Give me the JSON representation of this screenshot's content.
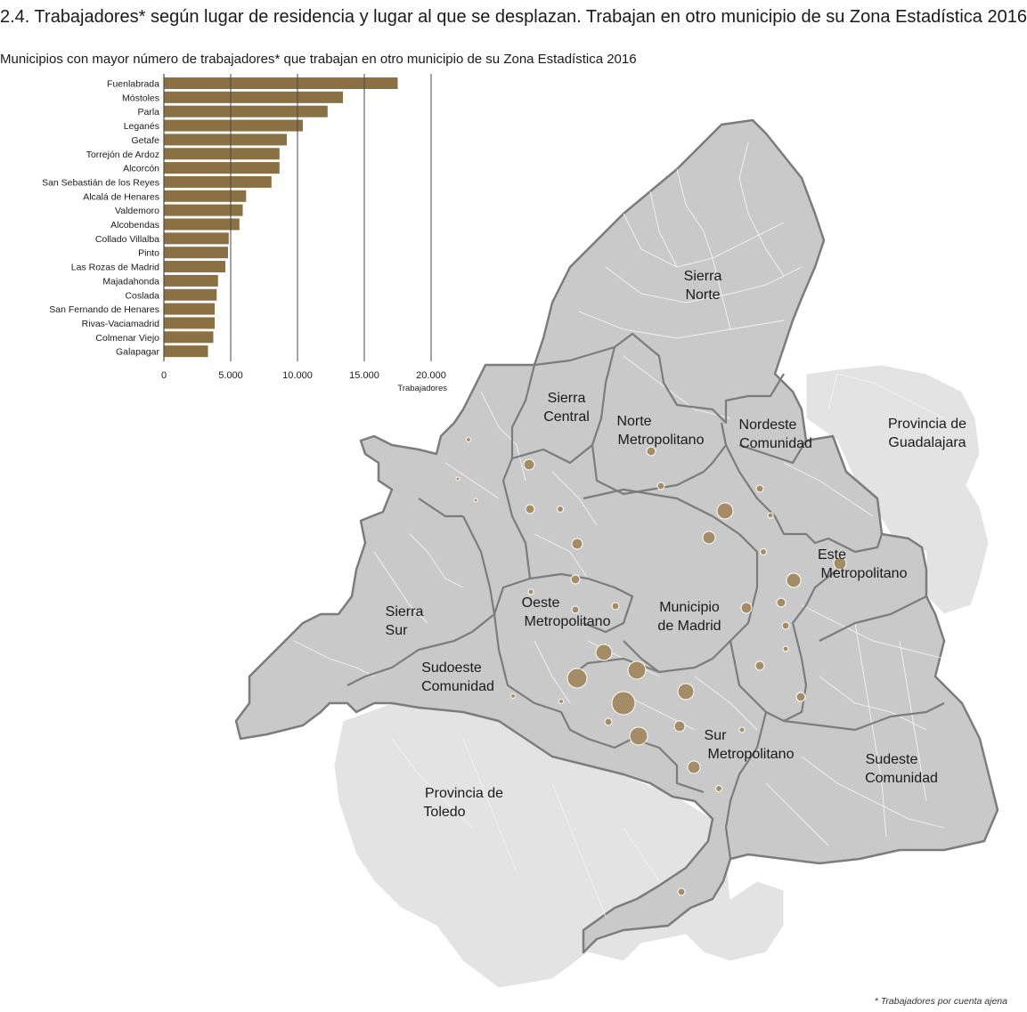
{
  "title": "2.4. Trabajadores* según lugar de residencia y lugar al que se desplazan. Trabajan en otro municipio de su Zona Estadística 2016",
  "subtitle": "Municipios con mayor número de trabajadores* que trabajan en otro municipio de su Zona Estadística 2016",
  "footnote": "* Trabajadores por cuenta ajena",
  "colors": {
    "bar": "#8b7043",
    "bubble": "#a48c66",
    "region": "#c9c9c9",
    "outside": "#e3e3e3",
    "border": "#7c7c7c"
  },
  "chart_data": {
    "type": "bar",
    "orientation": "horizontal",
    "categories": [
      "Fuenlabrada",
      "Móstoles",
      "Parla",
      "Leganés",
      "Getafe",
      "Torrejón de Ardoz",
      "Alcorcón",
      "San Sebastián de los Reyes",
      "Alcalá de Henares",
      "Valdemoro",
      "Alcobendas",
      "Collado Villalba",
      "Pinto",
      "Las Rozas de Madrid",
      "Majadahonda",
      "Coslada",
      "San Fernando de Henares",
      "Rivas-Vaciamadrid",
      "Colmenar Viejo",
      "Galapagar"
    ],
    "values": [
      17500,
      13400,
      12250,
      10400,
      9200,
      8650,
      8650,
      8050,
      6150,
      5900,
      5650,
      4850,
      4800,
      4600,
      4050,
      3950,
      3800,
      3800,
      3700,
      3300
    ],
    "xticks": [
      0,
      5000,
      10000,
      15000,
      20000
    ],
    "xtick_labels": [
      "0",
      "5.000",
      "10.000",
      "15.000",
      "20.000"
    ],
    "xlabel": "Trabajadores",
    "xlim": [
      0,
      21000
    ],
    "grid": true
  },
  "map": {
    "zones": [
      {
        "name_lines": [
          "Sierra",
          "Norte"
        ]
      },
      {
        "name_lines": [
          "Sierra",
          "Central"
        ]
      },
      {
        "name_lines": [
          "Norte",
          "Metropolitano"
        ]
      },
      {
        "name_lines": [
          "Nordeste",
          "Comunidad"
        ]
      },
      {
        "name_lines": [
          "Este",
          "Metropolitano"
        ]
      },
      {
        "name_lines": [
          "Oeste",
          "Metropolitano"
        ]
      },
      {
        "name_lines": [
          "Municipio",
          "de Madrid"
        ]
      },
      {
        "name_lines": [
          "Sierra",
          "Sur"
        ]
      },
      {
        "name_lines": [
          "Sudoeste",
          "Comunidad"
        ]
      },
      {
        "name_lines": [
          "Sur",
          "Metropolitano"
        ]
      },
      {
        "name_lines": [
          "Sudeste",
          "Comunidad"
        ]
      }
    ],
    "provinces": [
      {
        "name_lines": [
          "Provincia de",
          "Guadalajara"
        ]
      },
      {
        "name_lines": [
          "Provincia de",
          "Toledo"
        ]
      }
    ]
  }
}
